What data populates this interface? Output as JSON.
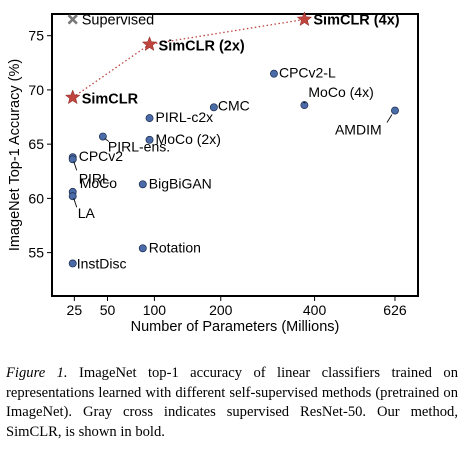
{
  "chart_data": {
    "type": "scatter",
    "xlabel": "Number of Parameters (Millions)",
    "ylabel": "ImageNet Top-1 Accuracy (%)",
    "x_scale": "sqrt",
    "xlim": [
      13,
      700
    ],
    "ylim": [
      51,
      77
    ],
    "x_ticks": [
      25,
      50,
      100,
      200,
      400,
      626
    ],
    "y_ticks": [
      55,
      60,
      65,
      70,
      75
    ],
    "grid": false,
    "legend": "top-left",
    "colors": {
      "point": "#4a6aa8",
      "star": "#c0453f",
      "cross": "#777777",
      "trend": "#c0453f"
    },
    "legend_label": "Supervised",
    "supervised": {
      "x": 24,
      "y": 76.5
    },
    "simclr": [
      {
        "name": "SimCLR",
        "x": 24,
        "y": 69.3
      },
      {
        "name": "SimCLR (2x)",
        "x": 94,
        "y": 74.2
      },
      {
        "name": "SimCLR (4x)",
        "x": 375,
        "y": 76.5
      }
    ],
    "points": [
      {
        "name": "CPCv2-L",
        "x": 305,
        "y": 71.5
      },
      {
        "name": "MoCo (4x)",
        "x": 375,
        "y": 68.6
      },
      {
        "name": "AMDIM",
        "x": 626,
        "y": 68.1
      },
      {
        "name": "CMC",
        "x": 188,
        "y": 68.4
      },
      {
        "name": "PIRL-c2x",
        "x": 94,
        "y": 67.4
      },
      {
        "name": "MoCo (2x)",
        "x": 94,
        "y": 65.4
      },
      {
        "name": "PIRL-ens.",
        "x": 46,
        "y": 65.7
      },
      {
        "name": "CPCv2",
        "x": 24,
        "y": 63.8
      },
      {
        "name": "PIRL",
        "x": 24,
        "y": 63.6
      },
      {
        "name": "BigBiGAN",
        "x": 86,
        "y": 61.3
      },
      {
        "name": "MoCo",
        "x": 24,
        "y": 60.6
      },
      {
        "name": "LA",
        "x": 24,
        "y": 60.2
      },
      {
        "name": "Rotation",
        "x": 86,
        "y": 55.4
      },
      {
        "name": "InstDisc",
        "x": 24,
        "y": 54.0
      }
    ]
  },
  "caption": {
    "label": "Figure 1.",
    "text": " ImageNet top-1 accuracy of linear classifiers trained on representations learned with different self-supervised methods (pretrained on ImageNet). Gray cross indicates supervised ResNet-50. Our method, SimCLR, is shown in bold."
  }
}
